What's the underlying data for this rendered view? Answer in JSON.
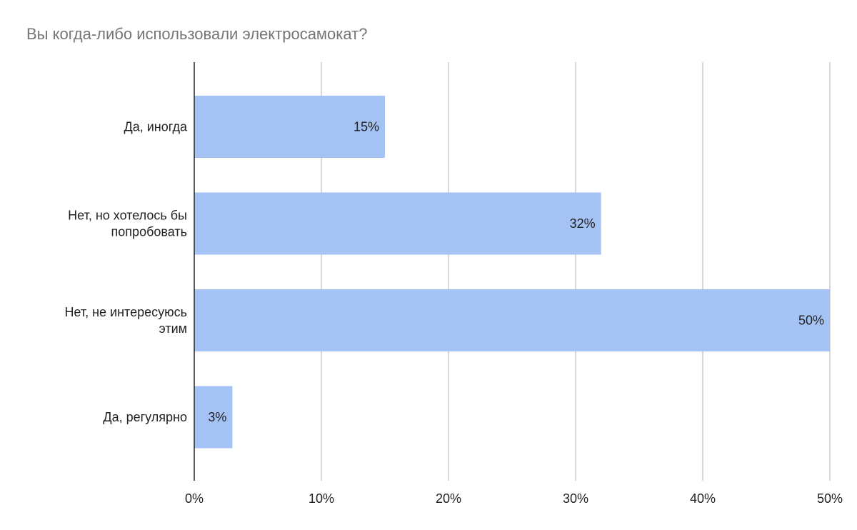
{
  "chart_data": {
    "type": "bar",
    "orientation": "horizontal",
    "title": "Вы когда-либо использовали электросамокат?",
    "categories": [
      [
        "Да, иногда"
      ],
      [
        "Нет, но хотелось бы",
        "попробовать"
      ],
      [
        "Нет, не интересуюсь",
        "этим"
      ],
      [
        "Да, регулярно"
      ]
    ],
    "values": [
      15,
      32,
      50,
      3
    ],
    "data_labels": [
      "15%",
      "32%",
      "50%",
      "3%"
    ],
    "xlim": [
      0,
      50
    ],
    "x_ticks": [
      0,
      10,
      20,
      30,
      40,
      50
    ],
    "x_tick_labels": [
      "0%",
      "10%",
      "20%",
      "30%",
      "40%",
      "50%"
    ],
    "grid": true,
    "legend": "none",
    "bar_color": "#a4c2f4",
    "grid_color": "#cccccc",
    "axis_color": "#222222"
  }
}
